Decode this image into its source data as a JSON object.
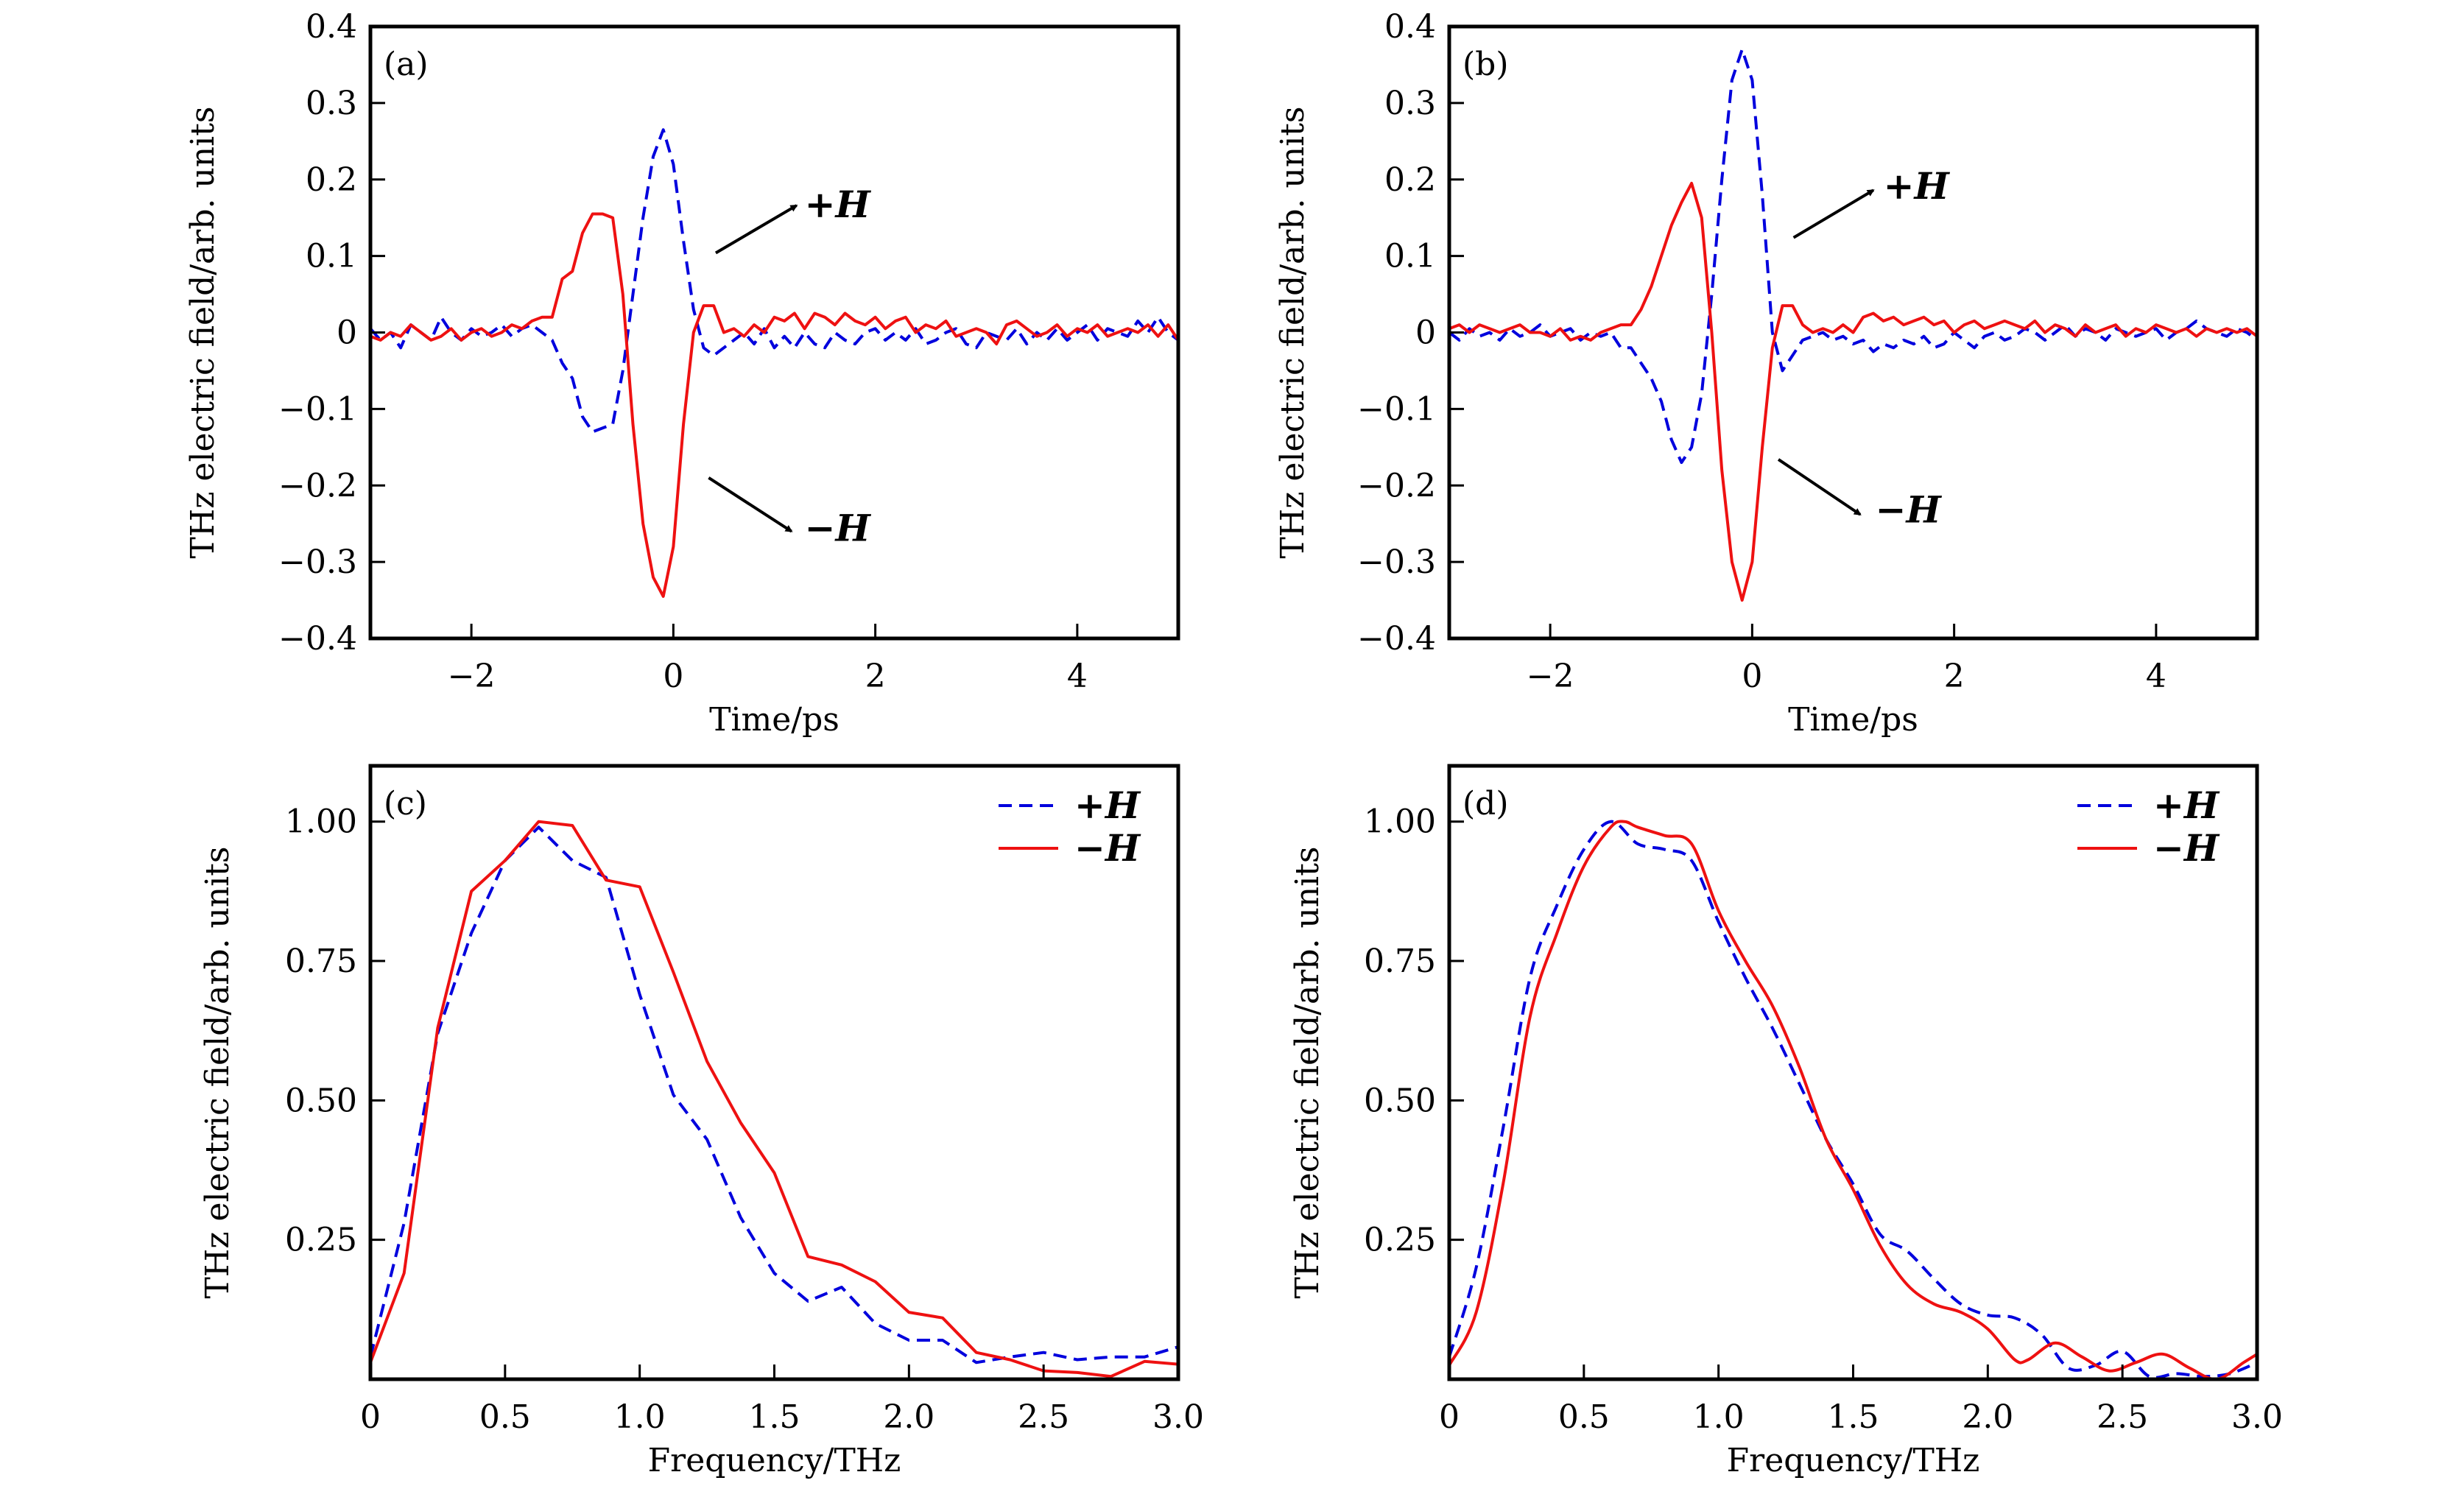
{
  "colors": {
    "plus_H": "#0000dd",
    "minus_H": "#ee1111",
    "axis": "#000000"
  },
  "chart_data": [
    {
      "type": "line",
      "panel_label": "(a)",
      "xlabel": "Time/ps",
      "ylabel": "THz electric field/arb. units",
      "xlim": [
        -3,
        5
      ],
      "ylim": [
        -0.4,
        0.4
      ],
      "xticks": [
        -2,
        0,
        2,
        4
      ],
      "xtick_labels": [
        "−2",
        "0",
        "2",
        "4"
      ],
      "yticks": [
        -0.4,
        -0.3,
        -0.2,
        -0.1,
        0,
        0.1,
        0.2,
        0.3,
        0.4
      ],
      "ytick_labels": [
        "−0.4",
        "−0.3",
        "−0.2",
        "−0.1",
        "0",
        "0.1",
        "0.2",
        "0.3",
        "0.4"
      ],
      "x_start": -3,
      "x_step": 0.1,
      "series": [
        {
          "name": "+H",
          "style": "dashed",
          "values": [
            0.005,
            -0.01,
            0.0,
            -0.02,
            0.01,
            0.0,
            -0.01,
            0.02,
            0.0,
            -0.01,
            0.005,
            -0.005,
            0.0,
            0.01,
            -0.005,
            0.005,
            0.01,
            0.0,
            -0.01,
            -0.04,
            -0.06,
            -0.11,
            -0.13,
            -0.125,
            -0.12,
            -0.05,
            0.05,
            0.15,
            0.23,
            0.265,
            0.22,
            0.12,
            0.03,
            -0.02,
            -0.03,
            -0.02,
            -0.01,
            0.0,
            -0.015,
            0.005,
            -0.02,
            -0.005,
            -0.02,
            0.0,
            -0.015,
            -0.02,
            0.0,
            -0.01,
            -0.015,
            0.0,
            0.005,
            -0.01,
            0.0,
            -0.01,
            0.005,
            -0.015,
            -0.01,
            0.0,
            0.005,
            -0.015,
            -0.02,
            0.0,
            -0.005,
            -0.01,
            0.005,
            -0.015,
            0.0,
            -0.01,
            0.005,
            -0.01,
            0.0,
            0.01,
            -0.01,
            0.005,
            0.0,
            -0.005,
            0.015,
            0.0,
            0.02,
            0.0,
            -0.01
          ]
        },
        {
          "name": "−H",
          "style": "solid",
          "values": [
            -0.005,
            -0.01,
            0.0,
            -0.005,
            0.01,
            0.0,
            -0.01,
            -0.005,
            0.005,
            -0.01,
            0.0,
            0.005,
            -0.005,
            0.0,
            0.01,
            0.005,
            0.015,
            0.02,
            0.02,
            0.07,
            0.08,
            0.13,
            0.155,
            0.155,
            0.15,
            0.05,
            -0.12,
            -0.25,
            -0.32,
            -0.345,
            -0.28,
            -0.12,
            0.0,
            0.035,
            0.035,
            0.0,
            0.005,
            -0.005,
            0.01,
            0.0,
            0.02,
            0.015,
            0.025,
            0.005,
            0.025,
            0.02,
            0.01,
            0.025,
            0.015,
            0.01,
            0.02,
            0.005,
            0.015,
            0.02,
            0.0,
            0.01,
            0.005,
            0.015,
            -0.005,
            0.0,
            0.005,
            0.0,
            -0.015,
            0.01,
            0.015,
            0.005,
            -0.005,
            0.0,
            0.01,
            -0.005,
            0.005,
            0.0,
            0.01,
            -0.005,
            0.0,
            0.005,
            0.0,
            0.01,
            -0.005,
            0.01,
            -0.01
          ]
        }
      ],
      "annotations": [
        {
          "text": "+H",
          "arrow_from": [
            0.42,
            0.104
          ],
          "arrow_to": [
            1.22,
            0.166
          ],
          "text_at": [
            1.3,
            0.166
          ]
        },
        {
          "text": "−H",
          "arrow_from": [
            0.35,
            -0.19
          ],
          "arrow_to": [
            1.17,
            -0.26
          ],
          "text_at": [
            1.3,
            -0.257
          ]
        }
      ]
    },
    {
      "type": "line",
      "panel_label": "(b)",
      "xlabel": "Time/ps",
      "ylabel": "THz electric field/arb. units",
      "xlim": [
        -3,
        5
      ],
      "ylim": [
        -0.4,
        0.4
      ],
      "xticks": [
        -2,
        0,
        2,
        4
      ],
      "xtick_labels": [
        "−2",
        "0",
        "2",
        "4"
      ],
      "yticks": [
        -0.4,
        -0.3,
        -0.2,
        -0.1,
        0,
        0.1,
        0.2,
        0.3,
        0.4
      ],
      "ytick_labels": [
        "−0.4",
        "−0.3",
        "−0.2",
        "−0.1",
        "0",
        "0.1",
        "0.2",
        "0.3",
        "0.4"
      ],
      "x_start": -3,
      "x_step": 0.1,
      "series": [
        {
          "name": "+H",
          "style": "dashed",
          "values": [
            0.0,
            -0.01,
            0.005,
            -0.005,
            0.0,
            -0.01,
            0.005,
            -0.005,
            0.0,
            0.01,
            -0.005,
            0.0,
            0.005,
            -0.01,
            0.0,
            -0.005,
            0.0,
            -0.02,
            -0.02,
            -0.04,
            -0.06,
            -0.09,
            -0.14,
            -0.17,
            -0.15,
            -0.08,
            0.05,
            0.2,
            0.33,
            0.37,
            0.33,
            0.18,
            0.0,
            -0.05,
            -0.03,
            -0.01,
            -0.005,
            0.0,
            -0.01,
            -0.005,
            -0.015,
            -0.01,
            -0.025,
            -0.015,
            -0.02,
            -0.01,
            -0.015,
            -0.005,
            -0.02,
            -0.015,
            0.0,
            -0.01,
            -0.02,
            -0.005,
            0.0,
            -0.01,
            -0.005,
            0.005,
            0.0,
            -0.01,
            0.0,
            0.01,
            -0.005,
            0.005,
            0.0,
            -0.01,
            0.005,
            0.0,
            -0.005,
            0.0,
            0.005,
            -0.01,
            0.0,
            0.005,
            0.015,
            0.005,
            0.0,
            -0.005,
            0.005,
            0.0,
            -0.01
          ]
        },
        {
          "name": "−H",
          "style": "solid",
          "values": [
            0.005,
            0.01,
            0.0,
            0.01,
            0.005,
            0.0,
            0.005,
            0.01,
            0.0,
            0.0,
            -0.005,
            0.005,
            -0.01,
            -0.005,
            -0.01,
            0.0,
            0.005,
            0.01,
            0.01,
            0.03,
            0.06,
            0.1,
            0.14,
            0.17,
            0.195,
            0.15,
            0.0,
            -0.18,
            -0.3,
            -0.35,
            -0.3,
            -0.15,
            -0.02,
            0.035,
            0.035,
            0.01,
            0.0,
            0.005,
            0.0,
            0.01,
            0.0,
            0.02,
            0.025,
            0.015,
            0.02,
            0.01,
            0.015,
            0.02,
            0.01,
            0.015,
            0.0,
            0.01,
            0.015,
            0.005,
            0.01,
            0.015,
            0.01,
            0.005,
            0.015,
            0.0,
            0.01,
            0.005,
            -0.005,
            0.01,
            0.0,
            0.005,
            0.01,
            -0.005,
            0.005,
            0.0,
            0.01,
            0.005,
            0.0,
            0.005,
            -0.005,
            0.005,
            0.0,
            0.005,
            0.0,
            0.005,
            -0.005
          ]
        }
      ],
      "annotations": [
        {
          "text": "+H",
          "arrow_from": [
            0.41,
            0.124
          ],
          "arrow_to": [
            1.2,
            0.186
          ],
          "text_at": [
            1.3,
            0.19
          ]
        },
        {
          "text": "−H",
          "arrow_from": [
            0.26,
            -0.166
          ],
          "arrow_to": [
            1.07,
            -0.238
          ],
          "text_at": [
            1.22,
            -0.233
          ]
        }
      ]
    },
    {
      "type": "line",
      "panel_label": "(c)",
      "xlabel": "Frequency/THz",
      "ylabel": "THz electric field/arb. units",
      "xlim": [
        0,
        3
      ],
      "ylim": [
        0,
        1.1
      ],
      "xticks": [
        0,
        0.5,
        1.0,
        1.5,
        2.0,
        2.5,
        3.0
      ],
      "xtick_labels": [
        "0",
        "0.5",
        "1.0",
        "1.5",
        "2.0",
        "2.5",
        "3.0"
      ],
      "yticks": [
        0.25,
        0.5,
        0.75,
        1.0
      ],
      "ytick_labels": [
        "0.25",
        "0.50",
        "0.75",
        "1.00"
      ],
      "legend": {
        "position": "top-right",
        "entries": [
          "+H",
          "−H"
        ]
      },
      "smooth": false,
      "series": [
        {
          "name": "+H",
          "style": "dashed",
          "x": [
            0,
            0.125,
            0.25,
            0.375,
            0.5,
            0.625,
            0.75,
            0.875,
            1.0,
            1.125,
            1.25,
            1.375,
            1.5,
            1.625,
            1.75,
            1.875,
            2.0,
            2.125,
            2.25,
            2.375,
            2.5,
            2.625,
            2.75,
            2.875,
            3.0
          ],
          "y": [
            0.04,
            0.28,
            0.62,
            0.8,
            0.93,
            0.99,
            0.93,
            0.9,
            0.69,
            0.51,
            0.43,
            0.29,
            0.19,
            0.14,
            0.165,
            0.1,
            0.07,
            0.07,
            0.03,
            0.04,
            0.048,
            0.035,
            0.04,
            0.04,
            0.058
          ]
        },
        {
          "name": "−H",
          "style": "solid",
          "x": [
            0,
            0.125,
            0.25,
            0.375,
            0.5,
            0.625,
            0.75,
            0.875,
            1.0,
            1.125,
            1.25,
            1.375,
            1.5,
            1.625,
            1.75,
            1.875,
            2.0,
            2.125,
            2.25,
            2.375,
            2.5,
            2.625,
            2.75,
            2.875,
            3.0
          ],
          "y": [
            0.03,
            0.19,
            0.63,
            0.875,
            0.93,
            1.0,
            0.993,
            0.895,
            0.883,
            0.73,
            0.57,
            0.46,
            0.37,
            0.22,
            0.205,
            0.175,
            0.12,
            0.11,
            0.048,
            0.035,
            0.015,
            0.012,
            0.005,
            0.032,
            0.027
          ]
        }
      ]
    },
    {
      "type": "line",
      "panel_label": "(d)",
      "xlabel": "Frequency/THz",
      "ylabel": "THz electric field/arb. units",
      "xlim": [
        0,
        3
      ],
      "ylim": [
        0,
        1.1
      ],
      "xticks": [
        0,
        0.5,
        1.0,
        1.5,
        2.0,
        2.5,
        3.0
      ],
      "xtick_labels": [
        "0",
        "0.5",
        "1.0",
        "1.5",
        "2.0",
        "2.5",
        "3.0"
      ],
      "yticks": [
        0.25,
        0.5,
        0.75,
        1.0
      ],
      "ytick_labels": [
        "0.25",
        "0.50",
        "0.75",
        "1.00"
      ],
      "legend": {
        "position": "top-right",
        "entries": [
          "+H",
          "−H"
        ]
      },
      "smooth": true,
      "series": [
        {
          "name": "+H",
          "style": "dashed",
          "x": [
            0,
            0.1,
            0.2,
            0.3,
            0.4,
            0.5,
            0.6,
            0.7,
            0.8,
            0.9,
            1.0,
            1.1,
            1.2,
            1.3,
            1.4,
            1.5,
            1.6,
            1.7,
            1.8,
            1.9,
            2.0,
            2.1,
            2.2,
            2.3,
            2.4,
            2.5,
            2.6,
            2.7,
            2.8,
            2.9,
            3.0
          ],
          "y": [
            0.04,
            0.2,
            0.45,
            0.72,
            0.85,
            0.95,
            1.0,
            0.96,
            0.95,
            0.93,
            0.82,
            0.72,
            0.63,
            0.53,
            0.43,
            0.35,
            0.26,
            0.23,
            0.18,
            0.135,
            0.115,
            0.11,
            0.08,
            0.02,
            0.025,
            0.05,
            0.005,
            0.01,
            0.005,
            0.01,
            0.03
          ]
        },
        {
          "name": "−H",
          "style": "solid",
          "x": [
            0,
            0.1,
            0.2,
            0.3,
            0.4,
            0.5,
            0.6,
            0.65,
            0.7,
            0.8,
            0.9,
            1.0,
            1.1,
            1.2,
            1.3,
            1.4,
            1.5,
            1.6,
            1.7,
            1.8,
            1.9,
            2.0,
            2.1,
            2.15,
            2.25,
            2.35,
            2.45,
            2.55,
            2.65,
            2.75,
            2.85,
            2.95,
            3.0
          ],
          "y": [
            0.025,
            0.12,
            0.35,
            0.65,
            0.8,
            0.92,
            0.99,
            1.0,
            0.99,
            0.975,
            0.96,
            0.84,
            0.75,
            0.67,
            0.56,
            0.43,
            0.34,
            0.24,
            0.17,
            0.135,
            0.12,
            0.09,
            0.035,
            0.035,
            0.065,
            0.04,
            0.015,
            0.03,
            0.045,
            0.02,
            0.0,
            0.03,
            0.045
          ]
        }
      ]
    }
  ]
}
